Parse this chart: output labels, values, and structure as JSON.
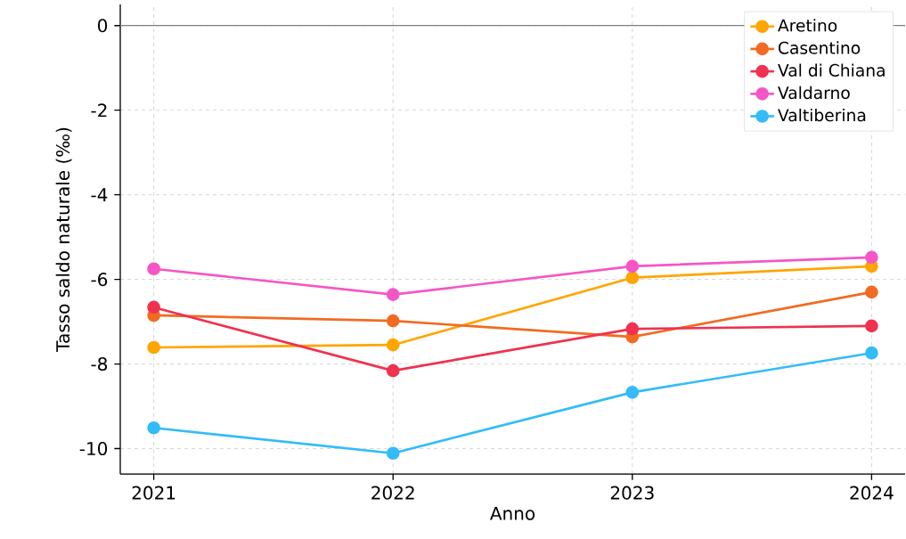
{
  "chart_data": {
    "type": "line",
    "xlabel": "Anno",
    "ylabel": "Tasso saldo naturale (‰)",
    "x": [
      2021,
      2022,
      2023,
      2024
    ],
    "series": [
      {
        "name": "Aretino",
        "color": "#ffa500",
        "values": [
          -7.61,
          -7.55,
          -5.96,
          -5.69
        ]
      },
      {
        "name": "Casentino",
        "color": "#f26b22",
        "values": [
          -6.85,
          -6.98,
          -7.36,
          -6.3
        ]
      },
      {
        "name": "Val di Chiana",
        "color": "#f0314f",
        "values": [
          -6.66,
          -8.16,
          -7.17,
          -7.1
        ]
      },
      {
        "name": "Valdarno",
        "color": "#f556c6",
        "values": [
          -5.75,
          -6.36,
          -5.69,
          -5.48
        ]
      },
      {
        "name": "Valtiberina",
        "color": "#33bcf7",
        "values": [
          -9.51,
          -10.11,
          -8.67,
          -7.74
        ]
      }
    ],
    "xlim": [
      2020.86,
      2024.14
    ],
    "ylim": [
      -10.6,
      0.5
    ],
    "xticks": [
      2021,
      2022,
      2023,
      2024
    ],
    "yticks": [
      -10,
      -8,
      -6,
      -4,
      -2,
      0
    ],
    "ref_lines": [
      {
        "axis": "y",
        "value": 0,
        "color": "#808080"
      }
    ],
    "grid": true,
    "legend": "top right",
    "marker": "circle",
    "line_style": "solid"
  }
}
